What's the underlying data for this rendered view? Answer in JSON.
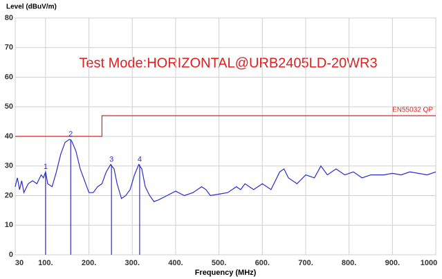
{
  "chart_data": {
    "type": "line",
    "annotation": "Test Mode:HORIZONTAL@URB2405LD-20WR3",
    "x_label": "Frequency (MHz)",
    "y_label": "Level (dBuV/m)",
    "xlim": [
      30,
      1000
    ],
    "ylim": [
      0,
      80
    ],
    "xticks": [
      30,
      {
        "value": 100,
        "label": "100."
      },
      {
        "value": 200,
        "label": "200."
      },
      {
        "value": 300,
        "label": "300."
      },
      {
        "value": 400,
        "label": "400."
      },
      {
        "value": 500,
        "label": "500."
      },
      {
        "value": 600,
        "label": "600."
      },
      {
        "value": 700,
        "label": "700."
      },
      {
        "value": 800,
        "label": "800."
      },
      {
        "value": 900,
        "label": "900."
      },
      1000
    ],
    "yticks": [
      0,
      10,
      20,
      30,
      40,
      50,
      60,
      70,
      80
    ],
    "grid": true,
    "series": [
      {
        "color": "#2a2ad0",
        "x": [
          30,
          35,
          40,
          45,
          50,
          60,
          70,
          80,
          90,
          95,
          100,
          105,
          115,
          125,
          135,
          145,
          155,
          160,
          170,
          180,
          190,
          200,
          210,
          220,
          230,
          240,
          250,
          258,
          265,
          275,
          285,
          295,
          305,
          315,
          322,
          330,
          340,
          350,
          360,
          380,
          400,
          420,
          440,
          460,
          470,
          480,
          500,
          520,
          540,
          550,
          560,
          580,
          600,
          620,
          640,
          650,
          660,
          680,
          700,
          720,
          735,
          750,
          770,
          790,
          810,
          830,
          850,
          880,
          900,
          920,
          940,
          960,
          980,
          1000
        ],
        "values": [
          23,
          26,
          22,
          25,
          21,
          24,
          25,
          24,
          27,
          26,
          28,
          24,
          23,
          28,
          34,
          38,
          39,
          38.5,
          35,
          29,
          25,
          21,
          21,
          23,
          24,
          28,
          30.5,
          29,
          24,
          19,
          20,
          22,
          27,
          30.5,
          29,
          23,
          20,
          18,
          18.5,
          20,
          21.5,
          20,
          21,
          23,
          22,
          20,
          20.5,
          21,
          23,
          22,
          24,
          22,
          24,
          22,
          28,
          29,
          26,
          24,
          27,
          26,
          30,
          27,
          29,
          27,
          28,
          26,
          27,
          27,
          27.5,
          27,
          28,
          27.5,
          27,
          28
        ]
      },
      {
        "name": "EN55032 QP",
        "color": "#e02020",
        "x": [
          30,
          230,
          230,
          1000
        ],
        "values": [
          40,
          40,
          47,
          47
        ]
      }
    ],
    "markers": [
      {
        "label": "1",
        "x": 100,
        "y": 28
      },
      {
        "label": "2",
        "x": 158,
        "y": 39
      },
      {
        "label": "3",
        "x": 252,
        "y": 30.5
      },
      {
        "label": "4",
        "x": 317,
        "y": 30.5
      }
    ]
  }
}
